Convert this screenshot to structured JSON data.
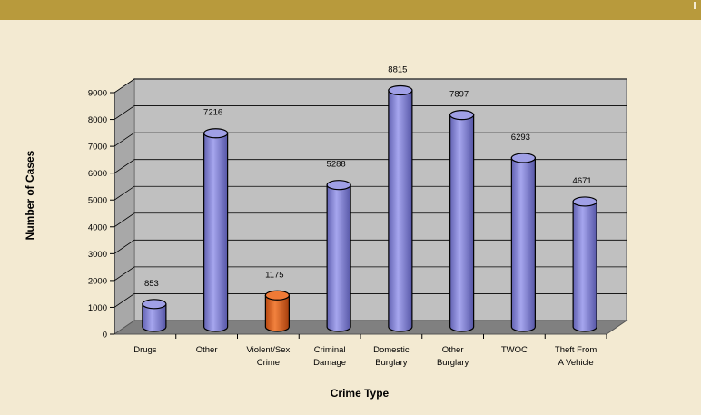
{
  "colors": {
    "background": "#f3ead2",
    "header_band": "#b89a3c",
    "plot_back": "#c0c0c0",
    "floor": "#808080",
    "bar": "#8c8cd6",
    "bar_highlight": "#e0621e"
  },
  "chart_data": {
    "type": "bar",
    "title": "",
    "xlabel": "Crime Type",
    "ylabel": "Number of Cases",
    "ylim": [
      0,
      9000
    ],
    "yticks": [
      0,
      1000,
      2000,
      3000,
      4000,
      5000,
      6000,
      7000,
      8000,
      9000
    ],
    "grid": true,
    "categories": [
      [
        "Drugs"
      ],
      [
        "Other"
      ],
      [
        "Violent/Sex",
        "Crime"
      ],
      [
        "Criminal",
        "Damage"
      ],
      [
        "Domestic",
        "Burglary"
      ],
      [
        "Other",
        "Burglary"
      ],
      [
        "TWOC"
      ],
      [
        "Theft From",
        "A Vehicle"
      ]
    ],
    "values": [
      853,
      7216,
      1175,
      5288,
      8815,
      7897,
      6293,
      4671
    ],
    "value_labels": [
      "853",
      "7216",
      "1175",
      "5288",
      "8815",
      "7897",
      "6293",
      "4671"
    ],
    "highlight_index": 2
  }
}
